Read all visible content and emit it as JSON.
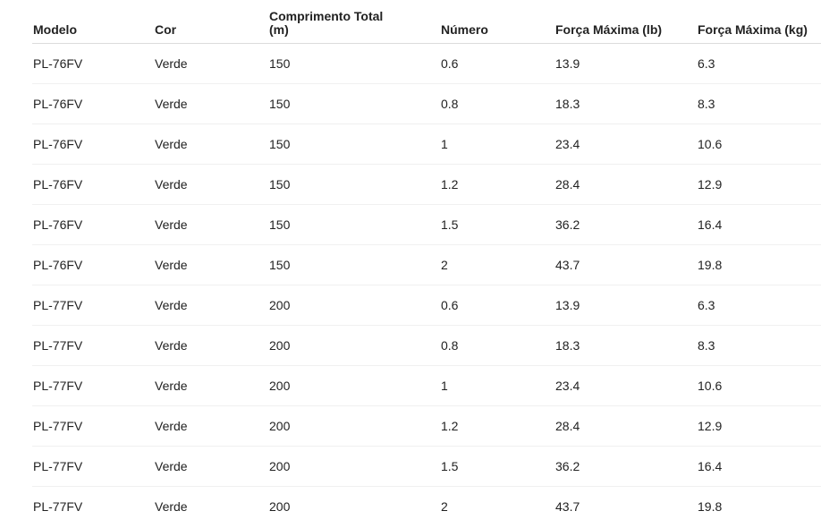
{
  "table": {
    "headers": [
      "Modelo",
      "Cor",
      "Comprimento Total (m)",
      "Número",
      "Força Máxima (lb)",
      "Força Máxima (kg)"
    ],
    "rows": [
      [
        "PL-76FV",
        "Verde",
        "150",
        "0.6",
        "13.9",
        "6.3"
      ],
      [
        "PL-76FV",
        "Verde",
        "150",
        "0.8",
        "18.3",
        "8.3"
      ],
      [
        "PL-76FV",
        "Verde",
        "150",
        "1",
        "23.4",
        "10.6"
      ],
      [
        "PL-76FV",
        "Verde",
        "150",
        "1.2",
        "28.4",
        "12.9"
      ],
      [
        "PL-76FV",
        "Verde",
        "150",
        "1.5",
        "36.2",
        "16.4"
      ],
      [
        "PL-76FV",
        "Verde",
        "150",
        "2",
        "43.7",
        "19.8"
      ],
      [
        "PL-77FV",
        "Verde",
        "200",
        "0.6",
        "13.9",
        "6.3"
      ],
      [
        "PL-77FV",
        "Verde",
        "200",
        "0.8",
        "18.3",
        "8.3"
      ],
      [
        "PL-77FV",
        "Verde",
        "200",
        "1",
        "23.4",
        "10.6"
      ],
      [
        "PL-77FV",
        "Verde",
        "200",
        "1.2",
        "28.4",
        "12.9"
      ],
      [
        "PL-77FV",
        "Verde",
        "200",
        "1.5",
        "36.2",
        "16.4"
      ],
      [
        "PL-77FV",
        "Verde",
        "200",
        "2",
        "43.7",
        "19.8"
      ]
    ]
  }
}
